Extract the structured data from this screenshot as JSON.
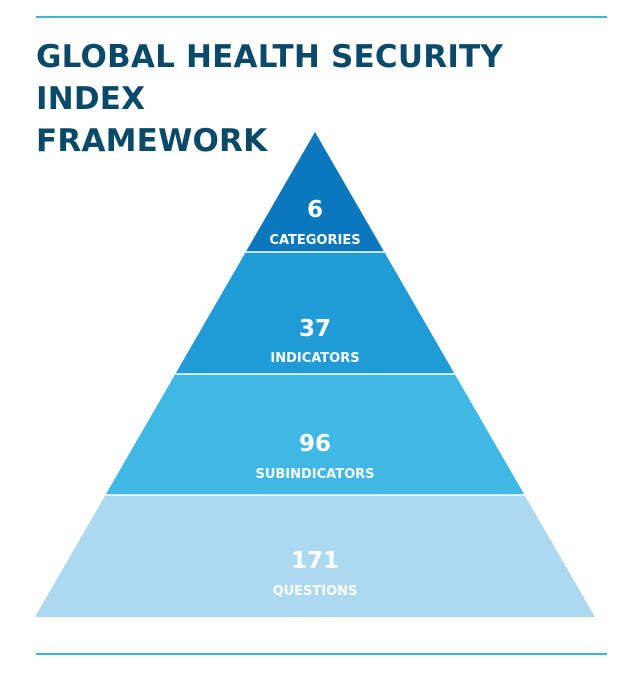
{
  "title": {
    "line1": "GLOBAL HEALTH SECURITY INDEX",
    "line2": "FRAMEWORK"
  },
  "colors": {
    "title_text": "#0a4a68",
    "rule": "#3cb5e0",
    "divider": "#ffffff",
    "tier_text": "#ffffff"
  },
  "tiers": [
    {
      "number": "6",
      "label": "CATEGORIES",
      "color": "#0b78bd"
    },
    {
      "number": "37",
      "label": "INDICATORS",
      "color": "#1f9cd8"
    },
    {
      "number": "96",
      "label": "SUBINDICATORS",
      "color": "#40b8e6"
    },
    {
      "number": "171",
      "label": "QUESTIONS",
      "color": "#acd9ef"
    }
  ]
}
